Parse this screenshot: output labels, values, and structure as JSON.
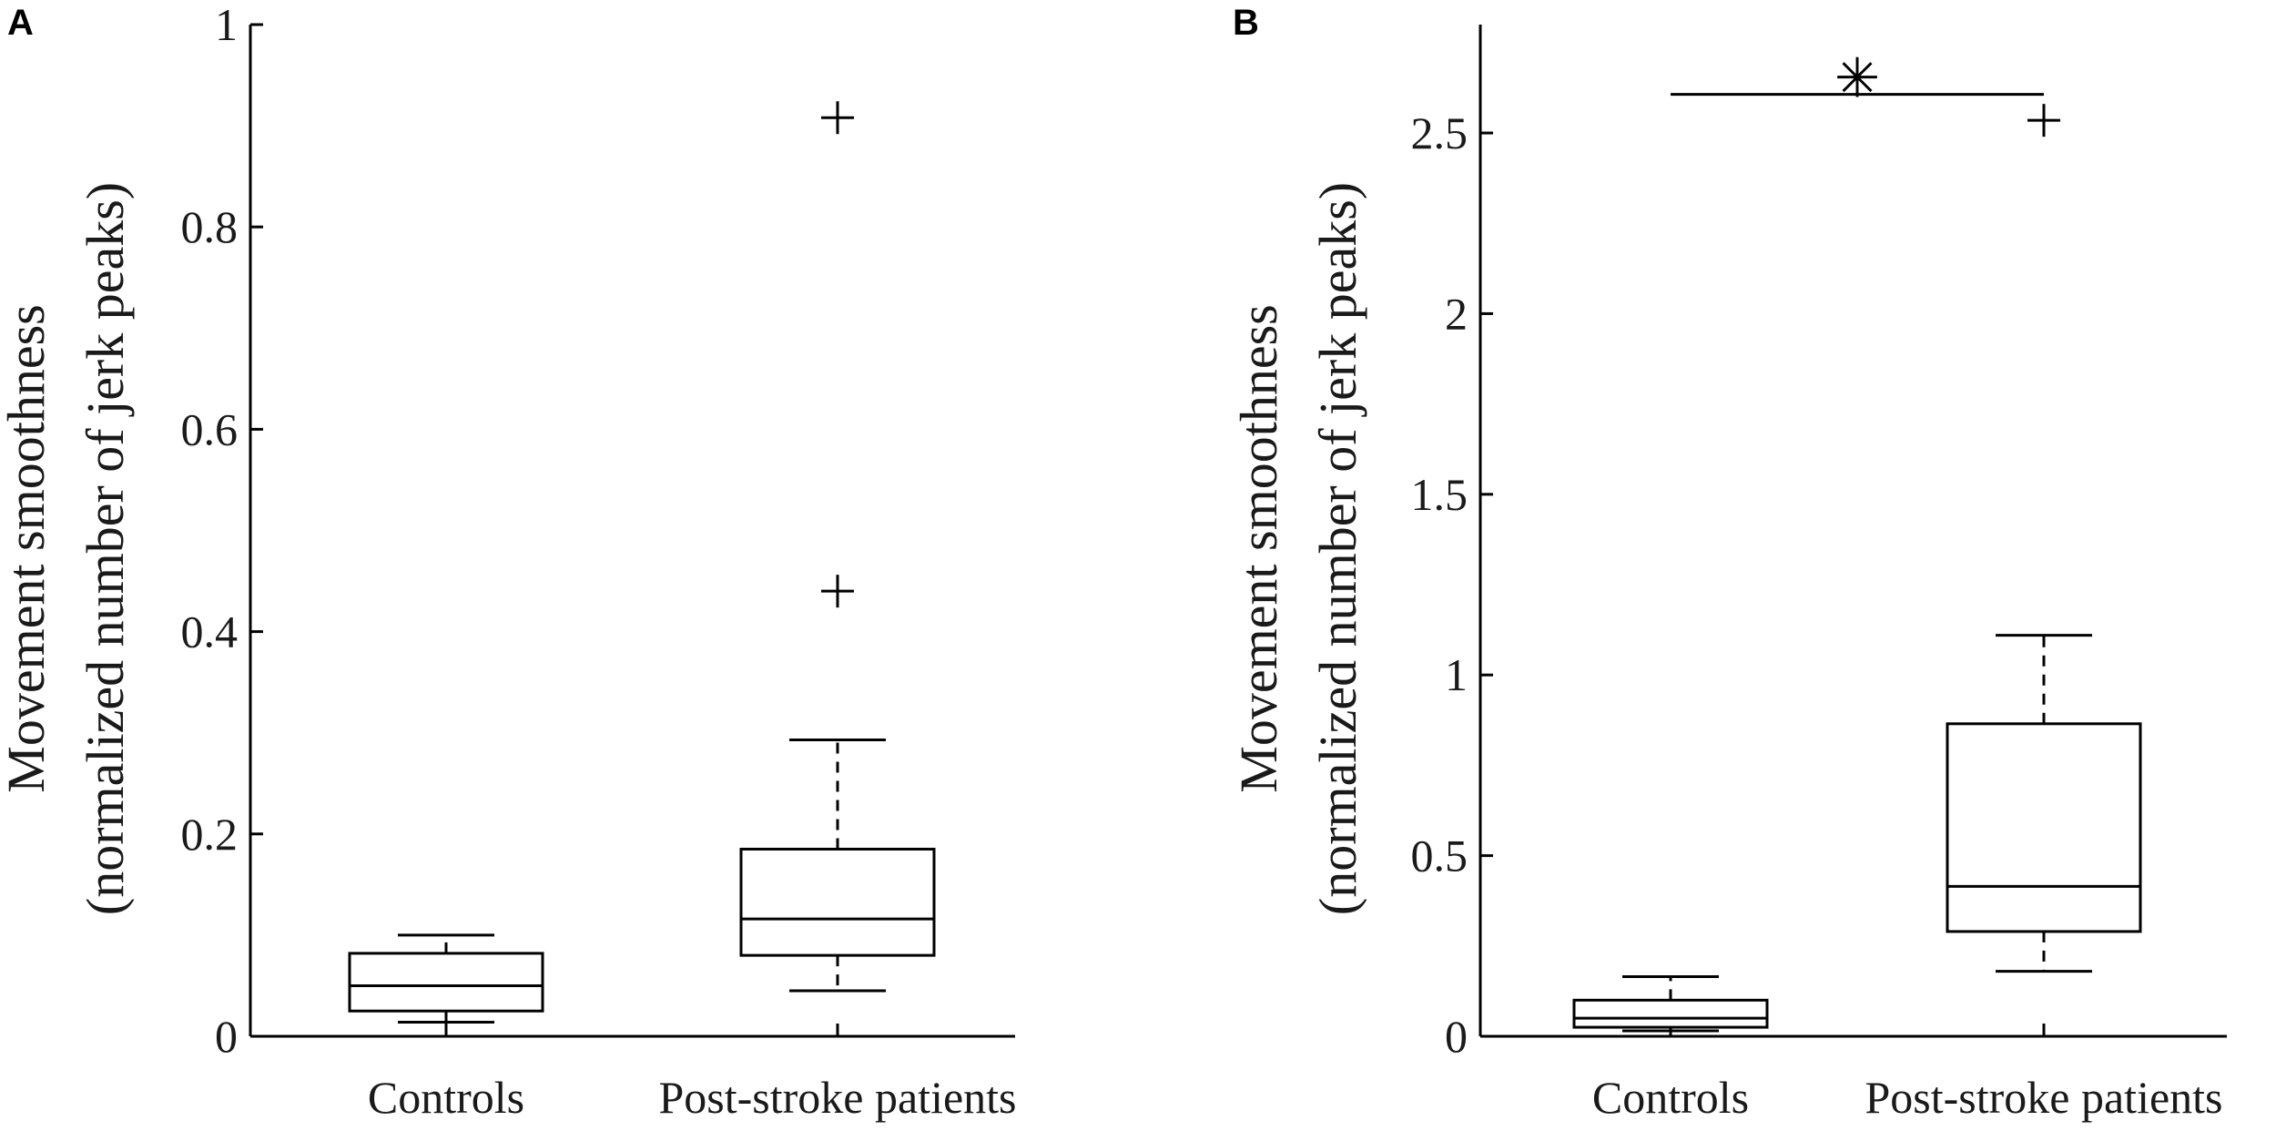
{
  "chart_data": [
    {
      "type": "box",
      "panel_label": "A",
      "ylabel": [
        "Movement smoothness",
        "(normalized number of jerk peaks)"
      ],
      "categories": [
        "Controls",
        "Post-stroke patients"
      ],
      "ylim": [
        0,
        1
      ],
      "yticks": [
        0,
        0.2,
        0.4,
        0.6,
        0.8,
        1
      ],
      "ytick_labels": [
        "0",
        "0.2",
        "0.4",
        "0.6",
        "0.8",
        "1"
      ],
      "boxes": [
        {
          "name": "Controls",
          "whisker_low": 0.014,
          "q1": 0.025,
          "median": 0.05,
          "q3": 0.082,
          "whisker_high": 0.1,
          "outliers": []
        },
        {
          "name": "Post-stroke patients",
          "whisker_low": 0.045,
          "q1": 0.08,
          "median": 0.116,
          "q3": 0.185,
          "whisker_high": 0.293,
          "outliers": [
            0.44,
            0.908
          ]
        }
      ],
      "significance": null
    },
    {
      "type": "box",
      "panel_label": "B",
      "ylabel": [
        "Movement smoothness",
        "(normalized number of jerk peaks)"
      ],
      "categories": [
        "Controls",
        "Post-stroke patients"
      ],
      "ylim": [
        0,
        2.8
      ],
      "yticks": [
        0,
        0.5,
        1,
        1.5,
        2,
        2.5
      ],
      "ytick_labels": [
        "0",
        "0.5",
        "1",
        "1.5",
        "2",
        "2.5"
      ],
      "boxes": [
        {
          "name": "Controls",
          "whisker_low": 0.015,
          "q1": 0.025,
          "median": 0.05,
          "q3": 0.1,
          "whisker_high": 0.165,
          "outliers": []
        },
        {
          "name": "Post-stroke patients",
          "whisker_low": 0.18,
          "q1": 0.29,
          "median": 0.415,
          "q3": 0.865,
          "whisker_high": 1.11,
          "outliers": [
            2.535
          ]
        }
      ],
      "significance": {
        "between": [
          "Controls",
          "Post-stroke patients"
        ],
        "symbol": "✳",
        "y": 2.7
      }
    }
  ]
}
